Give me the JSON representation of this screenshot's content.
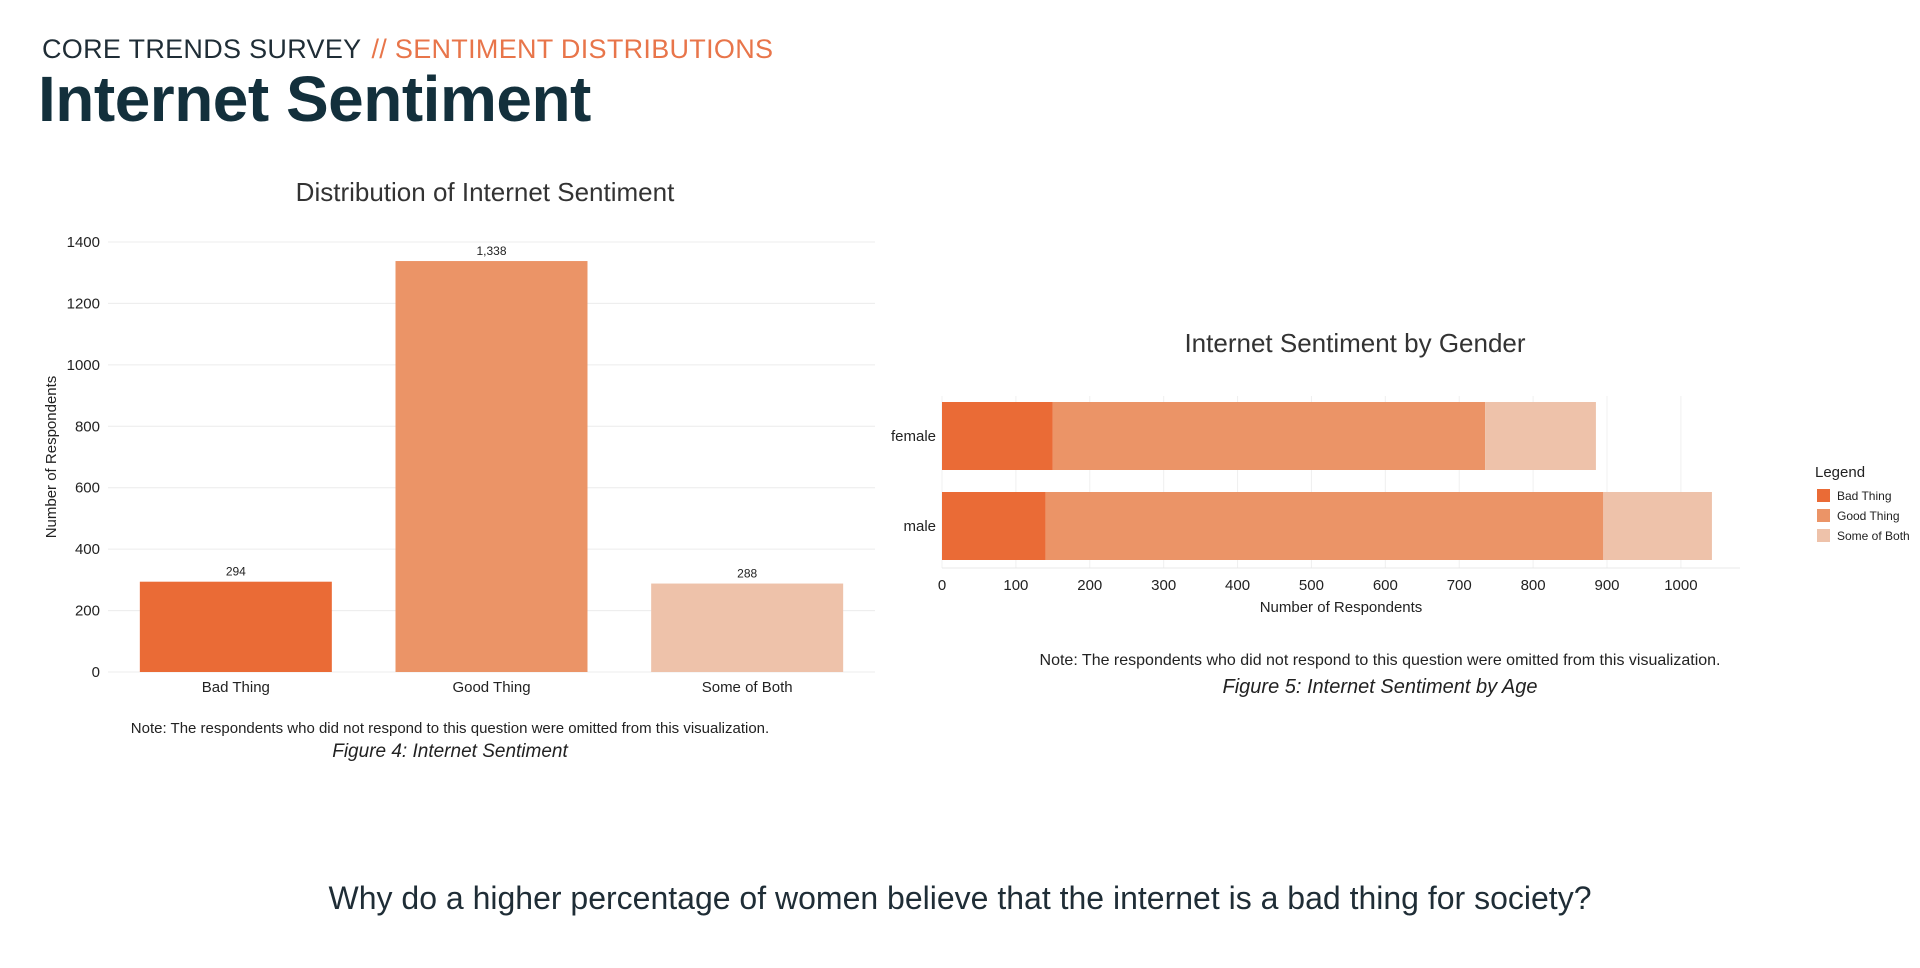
{
  "header": {
    "eyebrow": "CORE TRENDS SURVEY",
    "eyebrow_accent": "// SENTIMENT DISTRIBUTIONS",
    "title": "Internet Sentiment"
  },
  "colors": {
    "bad": "#ea6b36",
    "good": "#eb9467",
    "both": "#eec2aa",
    "accent": "#e8754a",
    "title": "#13303c"
  },
  "chart_data": [
    {
      "type": "bar",
      "title": "Distribution of Internet Sentiment",
      "xlabel": "",
      "ylabel": "Number of Respondents",
      "categories": [
        "Bad Thing",
        "Good Thing",
        "Some of Both"
      ],
      "values": [
        294,
        1338,
        288
      ],
      "value_labels": [
        "294",
        "1,338",
        "288"
      ],
      "ylim": [
        0,
        1400
      ],
      "yticks": [
        0,
        200,
        400,
        600,
        800,
        1000,
        1200,
        1400
      ],
      "grid": true,
      "note": "Note: The respondents who did not respond to this question were omitted from this visualization.",
      "caption": "Figure 4: Internet Sentiment"
    },
    {
      "type": "bar",
      "orientation": "horizontal",
      "stacked": true,
      "title": "Internet Sentiment by Gender",
      "xlabel": "Number of Respondents",
      "ylabel": "",
      "categories": [
        "female",
        "male"
      ],
      "series": [
        {
          "name": "Bad Thing",
          "values": [
            150,
            140
          ]
        },
        {
          "name": "Good Thing",
          "values": [
            585,
            755
          ]
        },
        {
          "name": "Some of Both",
          "values": [
            150,
            147
          ]
        }
      ],
      "xlim": [
        0,
        1080
      ],
      "xticks": [
        0,
        100,
        200,
        300,
        400,
        500,
        600,
        700,
        800,
        900,
        1000
      ],
      "legend_title": "Legend",
      "legend_position": "right",
      "grid": true,
      "note": "Note: The respondents who did not respond to this question were omitted from this visualization.",
      "caption": "Figure 5: Internet Sentiment by Age"
    }
  ],
  "question": "Why do a higher percentage of women believe that the internet is a bad thing for society?"
}
